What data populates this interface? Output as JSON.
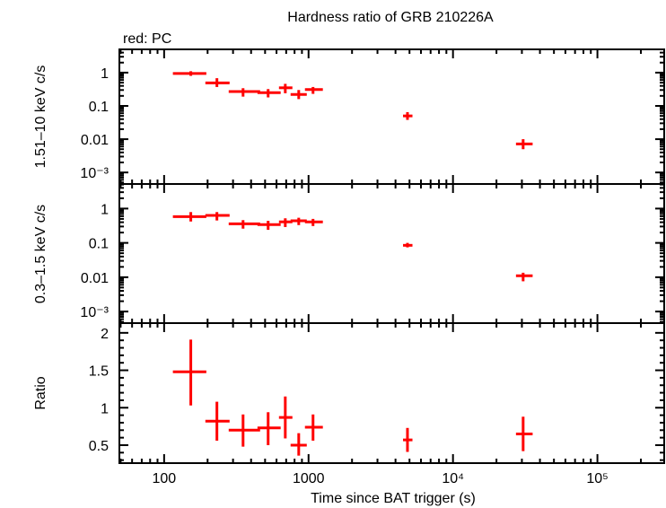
{
  "title": "Hardness ratio of GRB 210226A",
  "legend_note": "red: PC",
  "colors": {
    "series": "#ff0000",
    "axes": "#000000"
  },
  "chart_data": [
    {
      "type": "scatter",
      "panel": "top",
      "ylabel": "1.51–10 keV c/s",
      "yscale": "log",
      "ylim": [
        0.00045,
        5.0
      ],
      "yticks": [
        {
          "v": 1,
          "label": "1"
        },
        {
          "v": 0.1,
          "label": "0.1"
        },
        {
          "v": 0.01,
          "label": "0.01"
        },
        {
          "v": 0.001,
          "label": "10⁻³"
        }
      ],
      "points": [
        {
          "x": 153,
          "xlo": 115,
          "xhi": 196,
          "y": 0.94,
          "ylo": 0.8,
          "yhi": 1.1
        },
        {
          "x": 232,
          "xlo": 193,
          "xhi": 284,
          "y": 0.49,
          "ylo": 0.37,
          "yhi": 0.68
        },
        {
          "x": 352,
          "xlo": 280,
          "xhi": 462,
          "y": 0.27,
          "ylo": 0.19,
          "yhi": 0.34
        },
        {
          "x": 525,
          "xlo": 443,
          "xhi": 641,
          "y": 0.25,
          "ylo": 0.18,
          "yhi": 0.32
        },
        {
          "x": 690,
          "xlo": 624,
          "xhi": 773,
          "y": 0.35,
          "ylo": 0.24,
          "yhi": 0.46
        },
        {
          "x": 855,
          "xlo": 751,
          "xhi": 972,
          "y": 0.22,
          "ylo": 0.16,
          "yhi": 0.3
        },
        {
          "x": 1074,
          "xlo": 944,
          "xhi": 1256,
          "y": 0.31,
          "ylo": 0.23,
          "yhi": 0.37
        },
        {
          "x": 4840,
          "xlo": 4510,
          "xhi": 5240,
          "y": 0.05,
          "ylo": 0.038,
          "yhi": 0.065
        },
        {
          "x": 30600,
          "xlo": 27300,
          "xhi": 35600,
          "y": 0.0072,
          "ylo": 0.005,
          "yhi": 0.01
        }
      ]
    },
    {
      "type": "scatter",
      "panel": "middle",
      "ylabel": "0.3–1.5 keV c/s",
      "yscale": "log",
      "ylim": [
        0.00046,
        5.2
      ],
      "yticks": [
        {
          "v": 1,
          "label": "1"
        },
        {
          "v": 0.1,
          "label": "0.1"
        },
        {
          "v": 0.01,
          "label": "0.01"
        },
        {
          "v": 0.001,
          "label": "10⁻³"
        }
      ],
      "points": [
        {
          "x": 153,
          "xlo": 115,
          "xhi": 196,
          "y": 0.58,
          "ylo": 0.42,
          "yhi": 0.79
        },
        {
          "x": 232,
          "xlo": 193,
          "xhi": 284,
          "y": 0.63,
          "ylo": 0.45,
          "yhi": 0.79
        },
        {
          "x": 352,
          "xlo": 280,
          "xhi": 462,
          "y": 0.36,
          "ylo": 0.26,
          "yhi": 0.46
        },
        {
          "x": 525,
          "xlo": 443,
          "xhi": 641,
          "y": 0.34,
          "ylo": 0.24,
          "yhi": 0.44
        },
        {
          "x": 690,
          "xlo": 624,
          "xhi": 773,
          "y": 0.41,
          "ylo": 0.29,
          "yhi": 0.52
        },
        {
          "x": 855,
          "xlo": 751,
          "xhi": 972,
          "y": 0.44,
          "ylo": 0.33,
          "yhi": 0.54
        },
        {
          "x": 1074,
          "xlo": 944,
          "xhi": 1256,
          "y": 0.41,
          "ylo": 0.31,
          "yhi": 0.5
        },
        {
          "x": 4840,
          "xlo": 4510,
          "xhi": 5240,
          "y": 0.085,
          "ylo": 0.074,
          "yhi": 0.1
        },
        {
          "x": 30600,
          "xlo": 27300,
          "xhi": 35600,
          "y": 0.011,
          "ylo": 0.0076,
          "yhi": 0.0135
        }
      ]
    },
    {
      "type": "scatter",
      "panel": "bottom",
      "ylabel": "Ratio",
      "yscale": "linear",
      "ylim": [
        0.26,
        2.13
      ],
      "yticks": [
        {
          "v": 2,
          "label": "2"
        },
        {
          "v": 1.5,
          "label": "1.5"
        },
        {
          "v": 1,
          "label": "1"
        },
        {
          "v": 0.5,
          "label": "0.5"
        }
      ],
      "points": [
        {
          "x": 153,
          "xlo": 115,
          "xhi": 196,
          "y": 1.48,
          "ylo": 1.03,
          "yhi": 1.91
        },
        {
          "x": 232,
          "xlo": 193,
          "xhi": 284,
          "y": 0.82,
          "ylo": 0.56,
          "yhi": 1.08
        },
        {
          "x": 352,
          "xlo": 280,
          "xhi": 462,
          "y": 0.7,
          "ylo": 0.48,
          "yhi": 0.91
        },
        {
          "x": 525,
          "xlo": 443,
          "xhi": 641,
          "y": 0.73,
          "ylo": 0.5,
          "yhi": 0.94
        },
        {
          "x": 690,
          "xlo": 624,
          "xhi": 773,
          "y": 0.87,
          "ylo": 0.59,
          "yhi": 1.15
        },
        {
          "x": 855,
          "xlo": 751,
          "xhi": 972,
          "y": 0.5,
          "ylo": 0.36,
          "yhi": 0.66
        },
        {
          "x": 1074,
          "xlo": 944,
          "xhi": 1256,
          "y": 0.74,
          "ylo": 0.56,
          "yhi": 0.91
        },
        {
          "x": 4840,
          "xlo": 4510,
          "xhi": 5240,
          "y": 0.57,
          "ylo": 0.41,
          "yhi": 0.73
        },
        {
          "x": 30600,
          "xlo": 27300,
          "xhi": 35600,
          "y": 0.65,
          "ylo": 0.42,
          "yhi": 0.88
        }
      ]
    }
  ],
  "xaxis": {
    "label": "Time since BAT trigger (s)",
    "scale": "log",
    "xlim": [
      49,
      290000
    ],
    "ticks": [
      {
        "v": 100,
        "label": "100"
      },
      {
        "v": 1000,
        "label": "1000"
      },
      {
        "v": 10000,
        "label": "10⁴"
      },
      {
        "v": 100000,
        "label": "10⁵"
      }
    ]
  }
}
